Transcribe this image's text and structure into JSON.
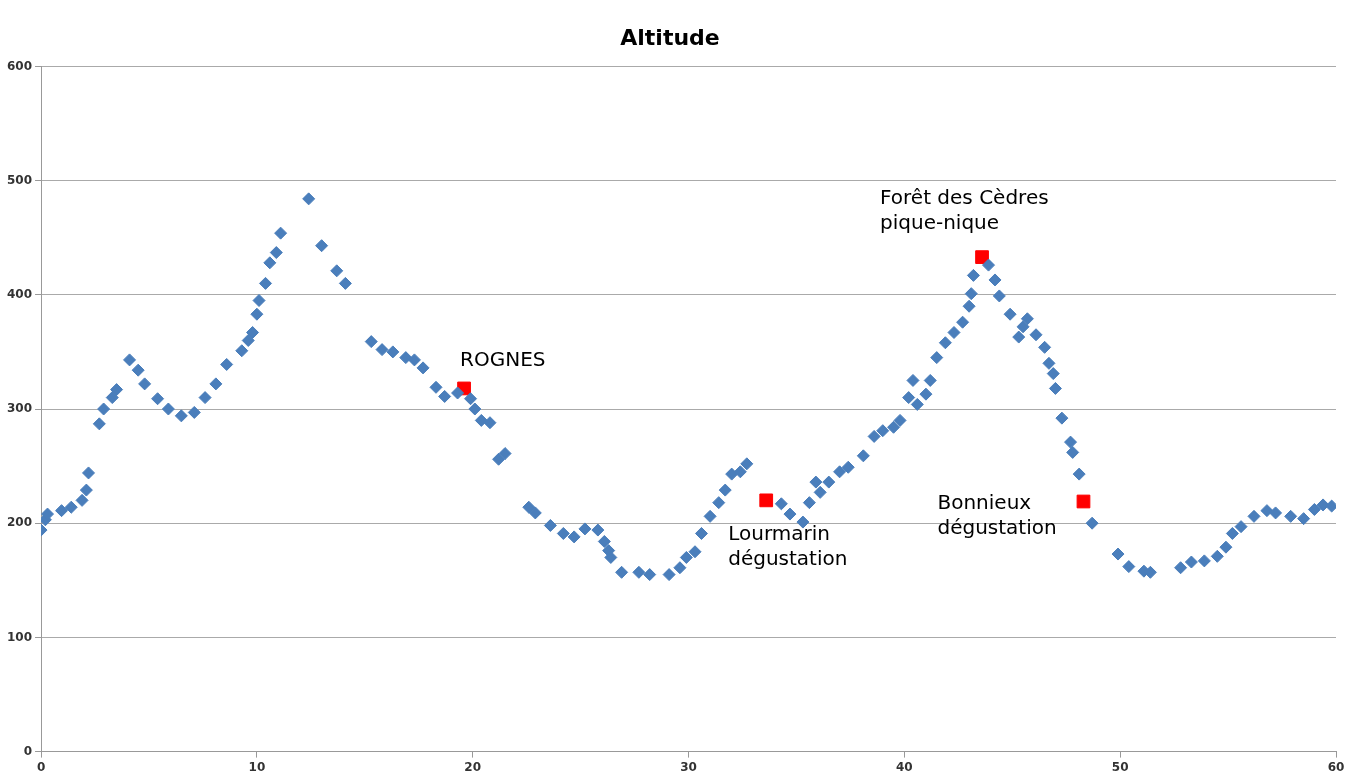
{
  "chart_data": {
    "type": "scatter",
    "title": "Altitude",
    "xlim": [
      0,
      60
    ],
    "xticks": [
      0,
      10,
      20,
      30,
      40,
      50,
      60
    ],
    "ylim": [
      0,
      600
    ],
    "yticks": [
      0,
      100,
      200,
      300,
      400,
      500,
      600
    ],
    "grid": "y",
    "legend": false,
    "marker": "diamond",
    "series": [
      {
        "color": "#4a7ebb",
        "x": [
          0,
          0.2,
          0.3,
          0.95,
          1.4,
          1.9,
          2.1,
          2.2,
          2.7,
          2.9,
          3.3,
          3.5,
          4.1,
          4.5,
          4.8,
          5.4,
          5.9,
          6.5,
          7.1,
          7.6,
          8.1,
          8.6,
          9.3,
          9.6,
          9.8,
          10.0,
          10.1,
          10.4,
          10.6,
          10.9,
          11.1,
          12.4,
          13.0,
          13.7,
          14.1,
          15.3,
          15.8,
          16.3,
          16.9,
          17.3,
          17.7,
          18.3,
          18.7,
          19.3,
          19.9,
          20.1,
          20.4,
          20.8,
          21.2,
          21.5,
          22.6,
          22.9,
          23.6,
          24.2,
          24.7,
          25.2,
          25.8,
          26.1,
          26.3,
          26.4,
          26.9,
          27.7,
          28.2,
          29.1,
          29.6,
          29.9,
          30.3,
          30.6,
          31.0,
          31.4,
          31.7,
          32.0,
          32.4,
          32.7,
          34.3,
          34.7,
          35.3,
          35.6,
          35.9,
          36.1,
          36.5,
          37.0,
          37.4,
          38.1,
          38.6,
          39.0,
          39.5,
          39.8,
          40.2,
          40.4,
          40.6,
          41.0,
          41.2,
          41.5,
          41.9,
          42.3,
          42.7,
          43.0,
          43.1,
          43.2,
          43.9,
          44.2,
          44.4,
          44.9,
          45.3,
          45.5,
          45.7,
          46.1,
          46.5,
          46.7,
          46.9,
          47.0,
          47.3,
          47.7,
          47.8,
          48.1,
          48.7,
          49.9,
          50.4,
          51.1,
          51.4,
          52.8,
          53.3,
          53.9,
          54.5,
          54.9,
          55.2,
          55.6,
          56.2,
          56.8,
          57.2,
          57.9,
          58.5,
          59.0,
          59.4,
          59.8
        ],
        "values": [
          194,
          203,
          208,
          211,
          214,
          220,
          229,
          244,
          287,
          300,
          310,
          317,
          343,
          334,
          322,
          309,
          300,
          294,
          297,
          310,
          322,
          339,
          351,
          360,
          367,
          383,
          395,
          410,
          428,
          437,
          454,
          484,
          443,
          421,
          410,
          359,
          352,
          350,
          345,
          343,
          336,
          319,
          311,
          314,
          309,
          300,
          290,
          288,
          256,
          261,
          214,
          209,
          198,
          191,
          188,
          195,
          194,
          184,
          176,
          170,
          157,
          157,
          155,
          155,
          161,
          170,
          175,
          191,
          206,
          218,
          229,
          243,
          245,
          252,
          217,
          208,
          201,
          218,
          236,
          227,
          236,
          245,
          249,
          259,
          276,
          281,
          284,
          290,
          310,
          325,
          304,
          313,
          325,
          345,
          358,
          367,
          376,
          390,
          401,
          417,
          426,
          413,
          399,
          383,
          363,
          372,
          379,
          365,
          354,
          340,
          331,
          318,
          292,
          271,
          262,
          243,
          200,
          173,
          162,
          158,
          157,
          161,
          166,
          167,
          171,
          179,
          191,
          197,
          206,
          211,
          209,
          206,
          204,
          212,
          216,
          215
        ]
      },
      {
        "color": "#ff0000",
        "marker": "square",
        "x": [
          19.6,
          33.6,
          43.6,
          48.3
        ],
        "values": [
          318,
          220,
          433,
          219
        ]
      }
    ],
    "annotations": [
      {
        "text": "ROGNES",
        "x": 19.6,
        "y": 318
      },
      {
        "text": "Lourmarin\ndégustation",
        "x": 33.6,
        "y": 220
      },
      {
        "text": "Forêt des Cèdres\npique-nique",
        "x": 43.6,
        "y": 433
      },
      {
        "text": "Bonnieux\ndégustation",
        "x": 48.3,
        "y": 219
      }
    ]
  }
}
